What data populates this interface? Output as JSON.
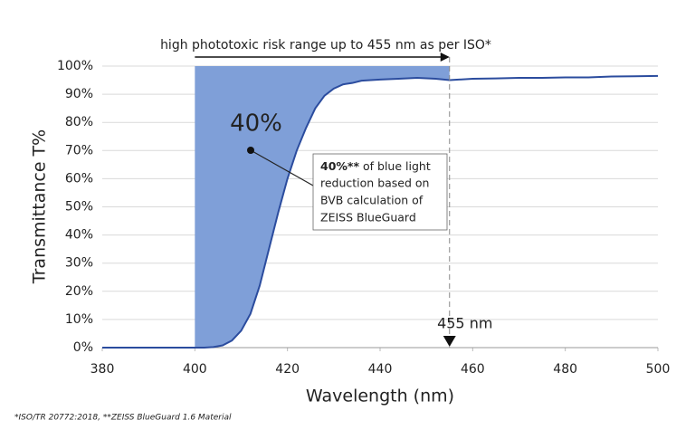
{
  "chart_data": {
    "type": "line",
    "xlabel": "Wavelength (nm)",
    "ylabel": "Transmittance T%",
    "x": [
      380,
      390,
      400,
      402,
      404,
      406,
      408,
      410,
      412,
      414,
      416,
      418,
      420,
      422,
      424,
      426,
      428,
      430,
      432,
      434,
      436,
      440,
      444,
      448,
      452,
      455,
      460,
      465,
      470,
      475,
      480,
      485,
      490,
      495,
      500
    ],
    "series": [
      {
        "color": "#2b4c9e",
        "values": [
          0,
          0,
          0,
          0,
          0.2,
          0.8,
          2.5,
          6,
          12,
          22,
          35,
          48,
          60,
          70,
          78,
          85,
          89.5,
          92,
          93.5,
          94,
          94.8,
          95.2,
          95.5,
          95.8,
          95.5,
          95,
          95.5,
          95.6,
          95.8,
          95.8,
          96,
          96,
          96.3,
          96.4,
          96.5
        ]
      }
    ],
    "shade_range": [
      400,
      455
    ],
    "shade_top": 100,
    "shade_color": "#7f9fd8",
    "marker_x": 455,
    "xlim": [
      380,
      500
    ],
    "xticks": [
      380,
      400,
      420,
      440,
      460,
      480,
      500
    ],
    "ylim": [
      0,
      100
    ],
    "yticks": [
      {
        "value": 0,
        "label": "0%"
      },
      {
        "value": 10,
        "label": "10%"
      },
      {
        "value": 20,
        "label": "20%"
      },
      {
        "value": 30,
        "label": "30%"
      },
      {
        "value": 40,
        "label": "40%"
      },
      {
        "value": 50,
        "label": "50%"
      },
      {
        "value": 60,
        "label": "60%"
      },
      {
        "value": 70,
        "label": "70%"
      },
      {
        "value": 80,
        "label": "80%"
      },
      {
        "value": 90,
        "label": "90%"
      },
      {
        "value": 100,
        "label": "100%"
      }
    ],
    "grid": true,
    "range_annotation": "high phototoxic risk range up to 455 nm as per ISO*",
    "big_label": "40%",
    "marker_label": "455 nm",
    "box": {
      "bold": "40%**",
      "lines": [
        "of blue light",
        "reduction based on",
        "BVB calculation of",
        "ZEISS BlueGuard"
      ]
    },
    "footnote": "*ISO/TR 20772:2018, **ZEISS BlueGuard 1.6 Material"
  }
}
